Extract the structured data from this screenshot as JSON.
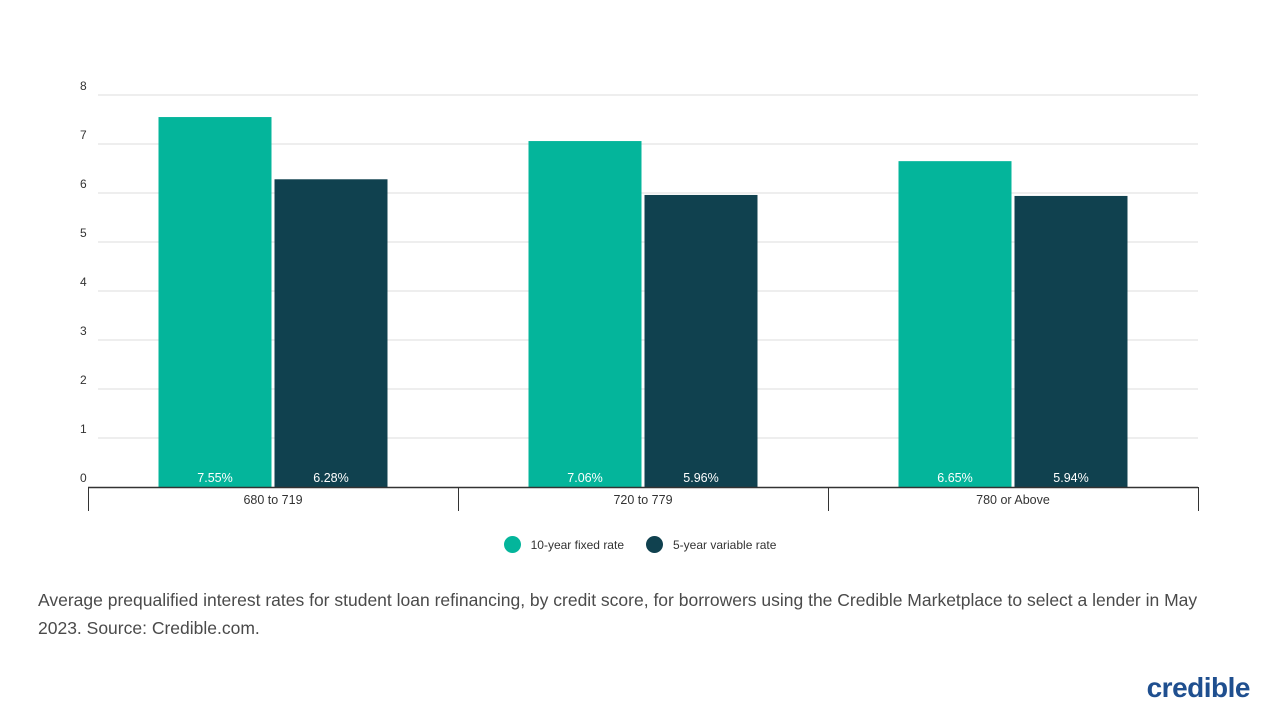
{
  "chart_data": {
    "type": "bar",
    "categories": [
      "680 to 719",
      "720 to 779",
      "780 or Above"
    ],
    "series": [
      {
        "name": "10-year fixed rate",
        "values": [
          7.55,
          7.06,
          6.65
        ],
        "labels": [
          "7.55%",
          "7.06%",
          "6.65%"
        ],
        "color": "#04b59b"
      },
      {
        "name": "5-year variable rate",
        "values": [
          6.28,
          5.96,
          5.94
        ],
        "labels": [
          "6.28%",
          "5.96%",
          "5.94%"
        ],
        "color": "#10414f"
      }
    ],
    "ylim": [
      0,
      8
    ],
    "yticks": [
      0,
      1,
      2,
      3,
      4,
      5,
      6,
      7,
      8
    ],
    "grid": true,
    "legend_position": "bottom-center",
    "title": "",
    "xlabel": "",
    "ylabel": ""
  },
  "caption": "Average prequalified interest rates for student loan refinancing, by credit score, for borrowers using the Credible Marketplace to select a lender in May 2023. Source: Credible.com.",
  "brand": {
    "name": "credible",
    "color": "#1f4f8f"
  },
  "colors": {
    "grid": "#dddddd",
    "axis": "#333333",
    "tick_text": "#333333",
    "bar_label": "#ffffff"
  }
}
